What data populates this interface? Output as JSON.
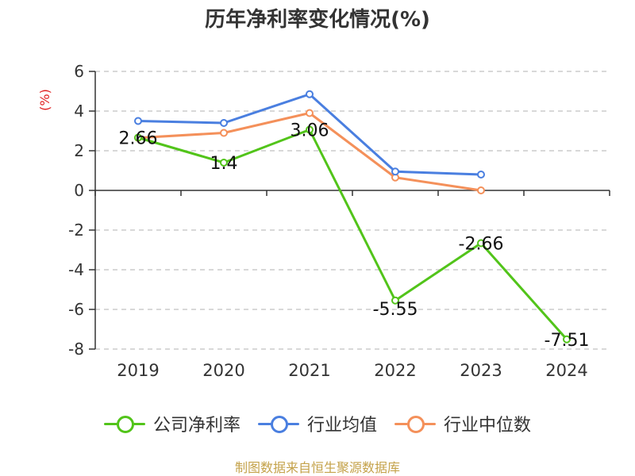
{
  "title": "历年净利率变化情况(%)",
  "source": "制图数据来自恒生聚源数据库",
  "chart_data": {
    "type": "line",
    "unit_label": "(%)",
    "categories": [
      "2019",
      "2020",
      "2021",
      "2022",
      "2023",
      "2024"
    ],
    "ylim": [
      -8,
      6
    ],
    "yticks": [
      6,
      4,
      2,
      0,
      -2,
      -4,
      -6,
      -8
    ],
    "grid": true,
    "legend_position": "bottom",
    "series": [
      {
        "name": "公司净利率",
        "color": "#52c41a",
        "values": [
          2.66,
          1.4,
          3.06,
          -5.55,
          -2.66,
          -7.51
        ],
        "labels": [
          "2.66",
          "1.4",
          "3.06",
          "-5.55",
          "-2.66",
          "-7.51"
        ]
      },
      {
        "name": "行业均值",
        "color": "#4a7fe0",
        "values": [
          3.5,
          3.4,
          4.85,
          0.95,
          0.8,
          null
        ],
        "labels": []
      },
      {
        "name": "行业中位数",
        "color": "#f4905a",
        "values": [
          2.65,
          2.9,
          3.9,
          0.65,
          0.0,
          null
        ],
        "labels": []
      }
    ]
  }
}
